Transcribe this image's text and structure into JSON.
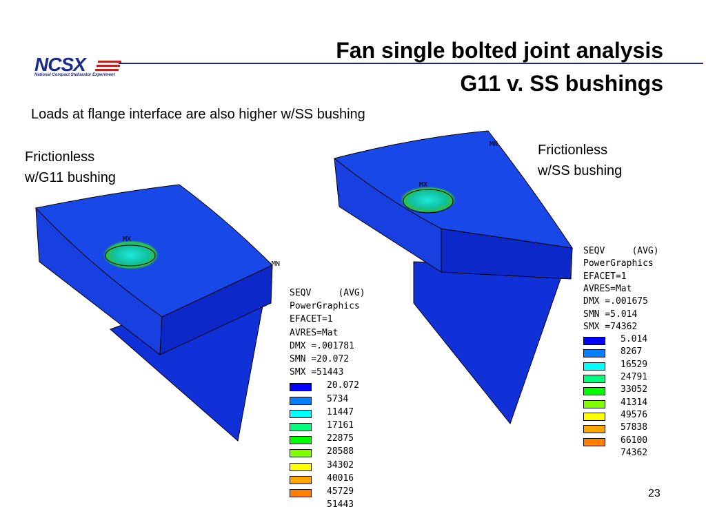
{
  "header": {
    "logo": "NCSX",
    "logo_caption": "National Compact Stellarator Experiment",
    "title_lines": [
      "Fan single bolted joint analysis",
      "G11 v. SS bushings"
    ]
  },
  "subtitle": "Loads at flange interface are also higher w/SS bushing",
  "panels": [
    {
      "label_lines": [
        "Frictionless",
        "w/G11 bushing"
      ],
      "max_marker": "MX",
      "min_marker": "MN",
      "legend_header": [
        "SEQV     (AVG)",
        "PowerGraphics",
        "EFACET=1",
        "AVRES=Mat",
        "DMX =.001781",
        "SMN =20.072",
        "SMX =51443"
      ],
      "legend_values": [
        "20.072",
        "5734",
        "11447",
        "17161",
        "22875",
        "28588",
        "34302",
        "40016",
        "45729",
        "51443"
      ]
    },
    {
      "label_lines": [
        "Frictionless",
        "w/SS bushing"
      ],
      "max_marker": "MX",
      "min_marker": "MN",
      "legend_header": [
        "SEQV     (AVG)",
        "PowerGraphics",
        "EFACET=1",
        "AVRES=Mat",
        "DMX =.001675",
        "SMN =5.014",
        "SMX =74362"
      ],
      "legend_values": [
        "5.014",
        "8267",
        "16529",
        "24791",
        "33052",
        "41314",
        "49576",
        "57838",
        "66100",
        "74362"
      ]
    }
  ],
  "page_number": "23"
}
